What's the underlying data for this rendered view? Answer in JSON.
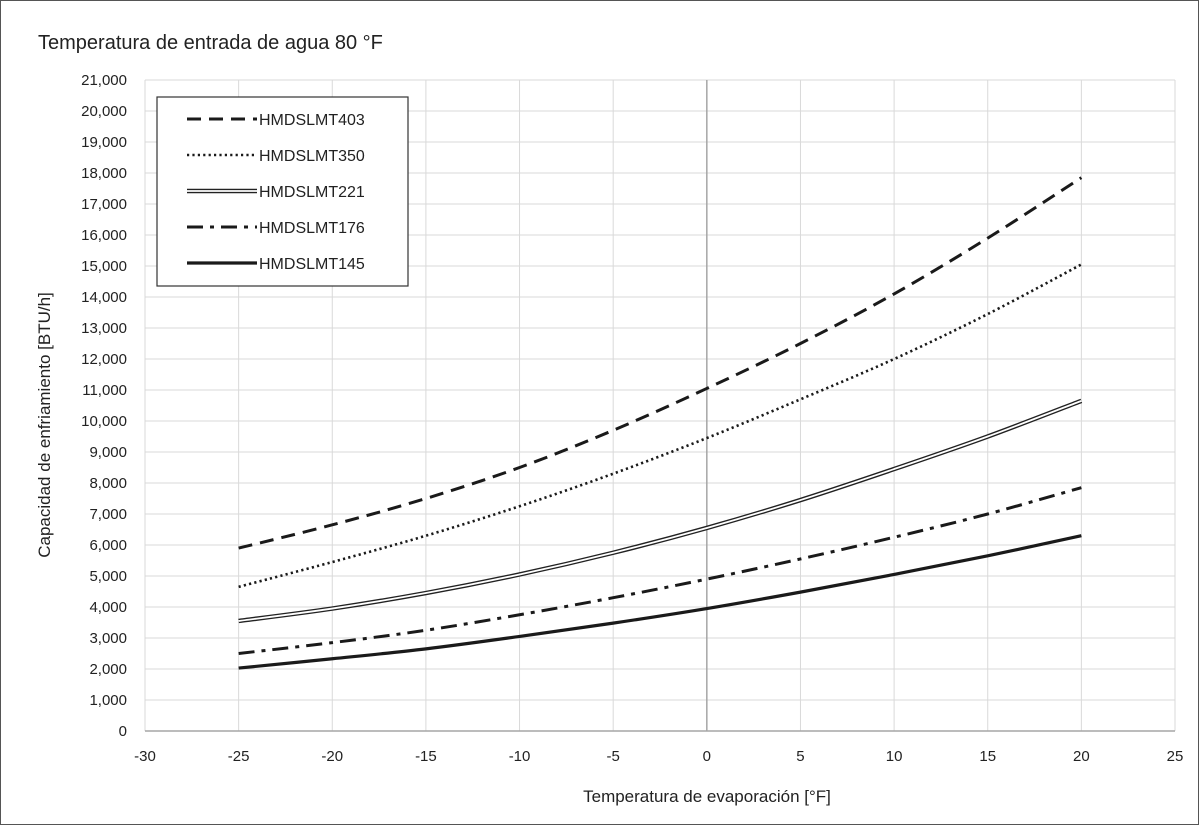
{
  "chart_data": {
    "type": "line",
    "title": "Temperatura de entrada de agua 80 °F",
    "xlabel": "Temperatura de evaporación [°F]",
    "ylabel": "Capacidad de enfriamiento [BTU/h]",
    "xlim": [
      -30,
      25
    ],
    "ylim": [
      0,
      21000
    ],
    "xticks": [
      -30,
      -25,
      -20,
      -15,
      -10,
      -5,
      0,
      5,
      10,
      15,
      20,
      25
    ],
    "xtick_labels": [
      "-30",
      "-25",
      "-20",
      "-15",
      "-10",
      "-5",
      "0",
      "5",
      "10",
      "15",
      "20",
      "25"
    ],
    "yticks": [
      0,
      1000,
      2000,
      3000,
      4000,
      5000,
      6000,
      7000,
      8000,
      9000,
      10000,
      11000,
      12000,
      13000,
      14000,
      15000,
      16000,
      17000,
      18000,
      19000,
      20000,
      21000
    ],
    "ytick_labels": [
      "0",
      "1,000",
      "2,000",
      "3,000",
      "4,000",
      "5,000",
      "6,000",
      "7,000",
      "8,000",
      "9,000",
      "10,000",
      "11,000",
      "12,000",
      "13,000",
      "14,000",
      "15,000",
      "16,000",
      "17,000",
      "18,000",
      "19,000",
      "20,000",
      "21,000"
    ],
    "grid": true,
    "legend_position": "top-left",
    "x": [
      -25,
      -20,
      -15,
      -10,
      -5,
      0,
      5,
      10,
      15,
      20
    ],
    "series": [
      {
        "name": "HMDSLMT403",
        "style": "dashed",
        "values": [
          5900,
          6650,
          7500,
          8500,
          9700,
          11050,
          12500,
          14100,
          15900,
          17850
        ]
      },
      {
        "name": "HMDSLMT350",
        "style": "dotted",
        "values": [
          4650,
          5450,
          6300,
          7250,
          8300,
          9450,
          10700,
          12000,
          13450,
          15050
        ]
      },
      {
        "name": "HMDSLMT221",
        "style": "double",
        "values": [
          3550,
          3950,
          4450,
          5050,
          5750,
          6550,
          7450,
          8450,
          9500,
          10650
        ]
      },
      {
        "name": "HMDSLMT176",
        "style": "dash-dot",
        "values": [
          2500,
          2850,
          3250,
          3750,
          4300,
          4900,
          5550,
          6250,
          7000,
          7850
        ]
      },
      {
        "name": "HMDSLMT145",
        "style": "solid",
        "values": [
          2030,
          2330,
          2650,
          3050,
          3480,
          3950,
          4480,
          5050,
          5650,
          6300
        ]
      }
    ]
  }
}
